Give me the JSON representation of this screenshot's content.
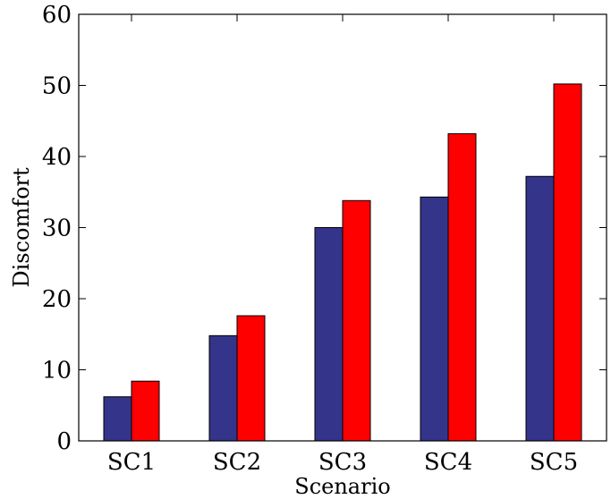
{
  "chart_data": {
    "type": "bar",
    "categories": [
      "SC1",
      "SC2",
      "SC3",
      "SC4",
      "SC5"
    ],
    "series": [
      {
        "values": [
          6.2,
          14.8,
          30.0,
          34.3,
          37.2
        ],
        "color": "#33348a"
      },
      {
        "values": [
          8.4,
          17.6,
          33.8,
          43.2,
          50.2
        ],
        "color": "#ff0000"
      }
    ],
    "title": "",
    "xlabel": "Scenario",
    "ylabel": "Discomfort",
    "ylim": [
      0,
      60
    ],
    "yticks": [
      0,
      10,
      20,
      30,
      40,
      50,
      60
    ],
    "grid": false
  }
}
